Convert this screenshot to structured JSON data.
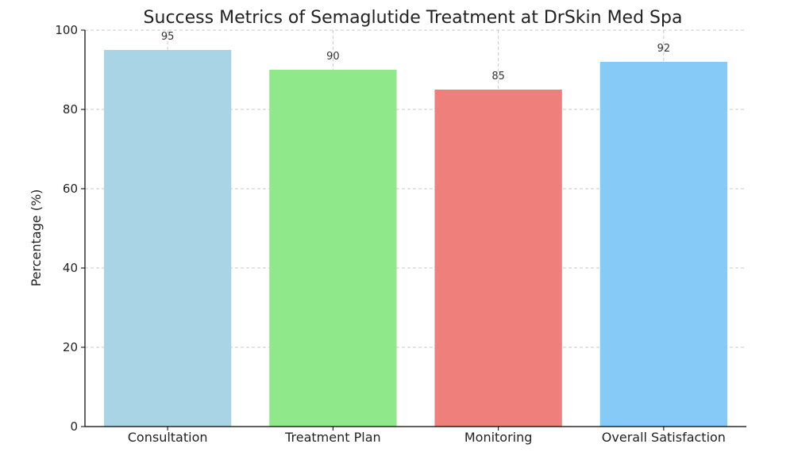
{
  "chart_data": {
    "type": "bar",
    "title": "Success Metrics of Semaglutide Treatment at DrSkin Med Spa",
    "xlabel": "",
    "ylabel": "Percentage (%)",
    "ylim": [
      0,
      100
    ],
    "yticks": [
      0,
      20,
      40,
      60,
      80,
      100
    ],
    "categories": [
      "Consultation",
      "Treatment Plan",
      "Monitoring",
      "Overall Satisfaction"
    ],
    "values": [
      95,
      90,
      85,
      92
    ],
    "colors": [
      "#a8d4e6",
      "#8fe88a",
      "#ef7f7b",
      "#86cbf8"
    ],
    "grid": true,
    "show_data_labels": true
  }
}
